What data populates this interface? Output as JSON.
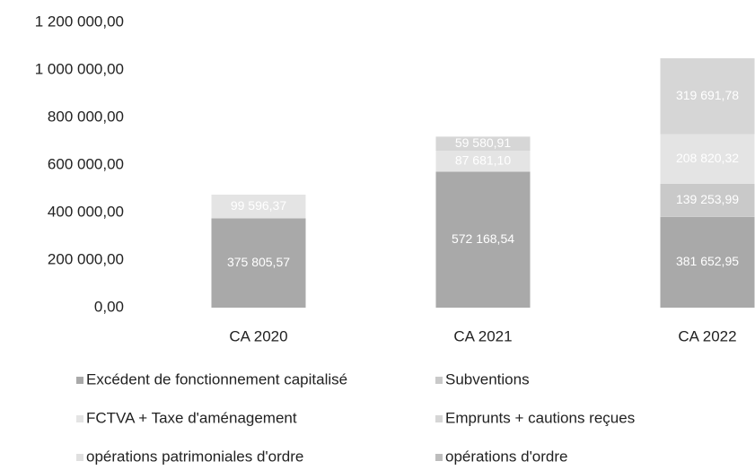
{
  "chart_data": {
    "type": "stacked_bar",
    "categories": [
      "CA 2020",
      "CA 2021",
      "CA 2022"
    ],
    "series": [
      {
        "name": "Excédent de fonctionnement capitalisé",
        "color": "#a9a9a9",
        "values": [
          375805.57,
          572168.54,
          381652.95
        ],
        "value_labels": [
          "375 805,57",
          "572 168,54",
          "381 652,95"
        ]
      },
      {
        "name": "Subventions",
        "color": "#c9c9c9",
        "values": [
          null,
          null,
          139253.99
        ],
        "value_labels": [
          null,
          null,
          "139 253,99"
        ]
      },
      {
        "name": "FCTVA + Taxe d'aménagement",
        "color": "#e4e4e4",
        "values": [
          99596.37,
          87681.1,
          208820.32
        ],
        "value_labels": [
          "99 596,37",
          "87 681,10",
          "208 820,32"
        ]
      },
      {
        "name": "Emprunts + cautions reçues",
        "color": "#d6d6d6",
        "values": [
          null,
          59580.91,
          319691.78
        ],
        "value_labels": [
          null,
          "59 580,91",
          "319 691,78"
        ]
      },
      {
        "name": "opérations patrimoniales d'ordre",
        "color": "#e0e0e0",
        "values": [
          null,
          null,
          null
        ]
      },
      {
        "name": "opérations d'ordre",
        "color": "#bdbdbd",
        "values": [
          null,
          null,
          null
        ]
      }
    ],
    "ylim": [
      0,
      1200000
    ],
    "yticks": [
      {
        "value": 0,
        "label": "0,00"
      },
      {
        "value": 200000,
        "label": "200 000,00"
      },
      {
        "value": 400000,
        "label": "400 000,00"
      },
      {
        "value": 600000,
        "label": "600 000,00"
      },
      {
        "value": 800000,
        "label": "800 000,00"
      },
      {
        "value": 1000000,
        "label": "1 000 000,00"
      },
      {
        "value": 1200000,
        "label": "1 200 000,00"
      }
    ],
    "legend": "bottom"
  }
}
